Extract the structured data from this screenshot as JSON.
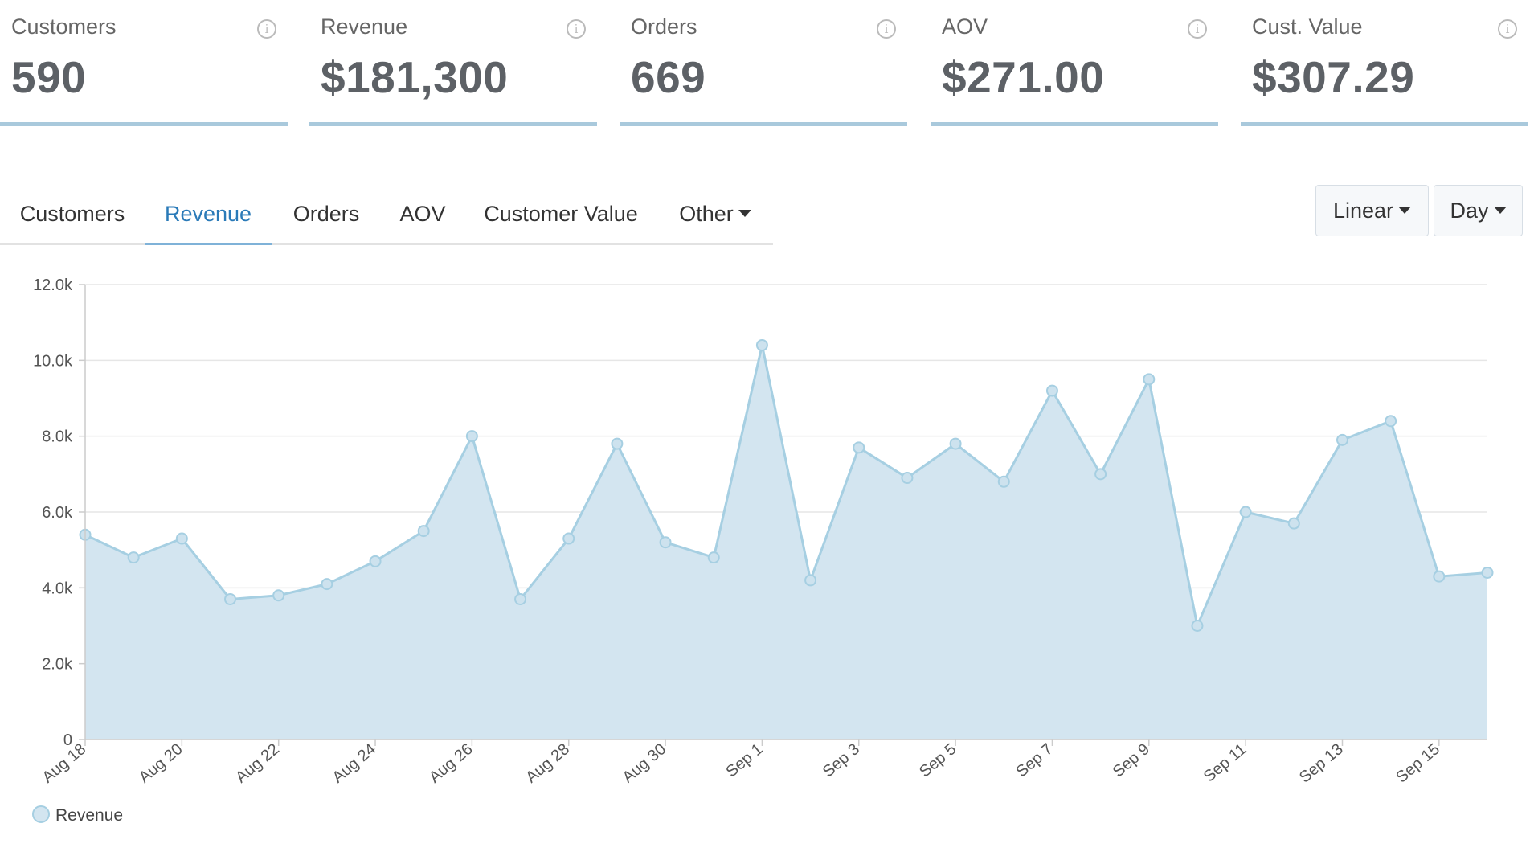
{
  "kpis": [
    {
      "label": "Customers",
      "value": "590"
    },
    {
      "label": "Revenue",
      "value": "$181,300"
    },
    {
      "label": "Orders",
      "value": "669"
    },
    {
      "label": "AOV",
      "value": "$271.00"
    },
    {
      "label": "Cust. Value",
      "value": "$307.29"
    }
  ],
  "info_glyph": "i",
  "tabs": {
    "customers": "Customers",
    "revenue": "Revenue",
    "orders": "Orders",
    "aov": "AOV",
    "customer_value": "Customer Value",
    "other": "Other",
    "active": "Revenue"
  },
  "controls": {
    "scale_label": "Linear",
    "period_label": "Day"
  },
  "colors": {
    "series_line": "#a6cfe2",
    "series_fill": "#d3e5f0",
    "active_tab": "#2a7ab8",
    "card_underline": "#a9c9dc"
  },
  "chart_data": {
    "type": "area",
    "x": [
      "Aug 18",
      "Aug 19",
      "Aug 20",
      "Aug 21",
      "Aug 22",
      "Aug 23",
      "Aug 24",
      "Aug 25",
      "Aug 26",
      "Aug 27",
      "Aug 28",
      "Aug 29",
      "Aug 30",
      "Aug 31",
      "Sep 1",
      "Sep 2",
      "Sep 3",
      "Sep 4",
      "Sep 5",
      "Sep 6",
      "Sep 7",
      "Sep 8",
      "Sep 9",
      "Sep 10",
      "Sep 11",
      "Sep 12",
      "Sep 13",
      "Sep 14",
      "Sep 15",
      "Sep 16"
    ],
    "x_tick_labels": [
      "Aug 18",
      "Aug 20",
      "Aug 22",
      "Aug 24",
      "Aug 26",
      "Aug 28",
      "Aug 30",
      "Sep 1",
      "Sep 3",
      "Sep 5",
      "Sep 7",
      "Sep 9",
      "Sep 11",
      "Sep 13",
      "Sep 15"
    ],
    "series": [
      {
        "name": "Revenue",
        "values": [
          5400,
          4800,
          5300,
          3700,
          3800,
          4100,
          4700,
          5500,
          8000,
          3700,
          5300,
          7800,
          5200,
          4800,
          10400,
          4200,
          7700,
          6900,
          7800,
          6800,
          9200,
          7000,
          9500,
          3000,
          6000,
          5700,
          7900,
          8400,
          4300,
          4400
        ]
      }
    ],
    "ylim": [
      0,
      12000
    ],
    "y_ticks": [
      0,
      2000,
      4000,
      6000,
      8000,
      10000,
      12000
    ],
    "y_tick_labels": [
      "0",
      "2.0k",
      "4.0k",
      "6.0k",
      "8.0k",
      "10.0k",
      "12.0k"
    ],
    "grid": true,
    "legend": "bottom-left",
    "title": "",
    "xlabel": "",
    "ylabel": ""
  }
}
